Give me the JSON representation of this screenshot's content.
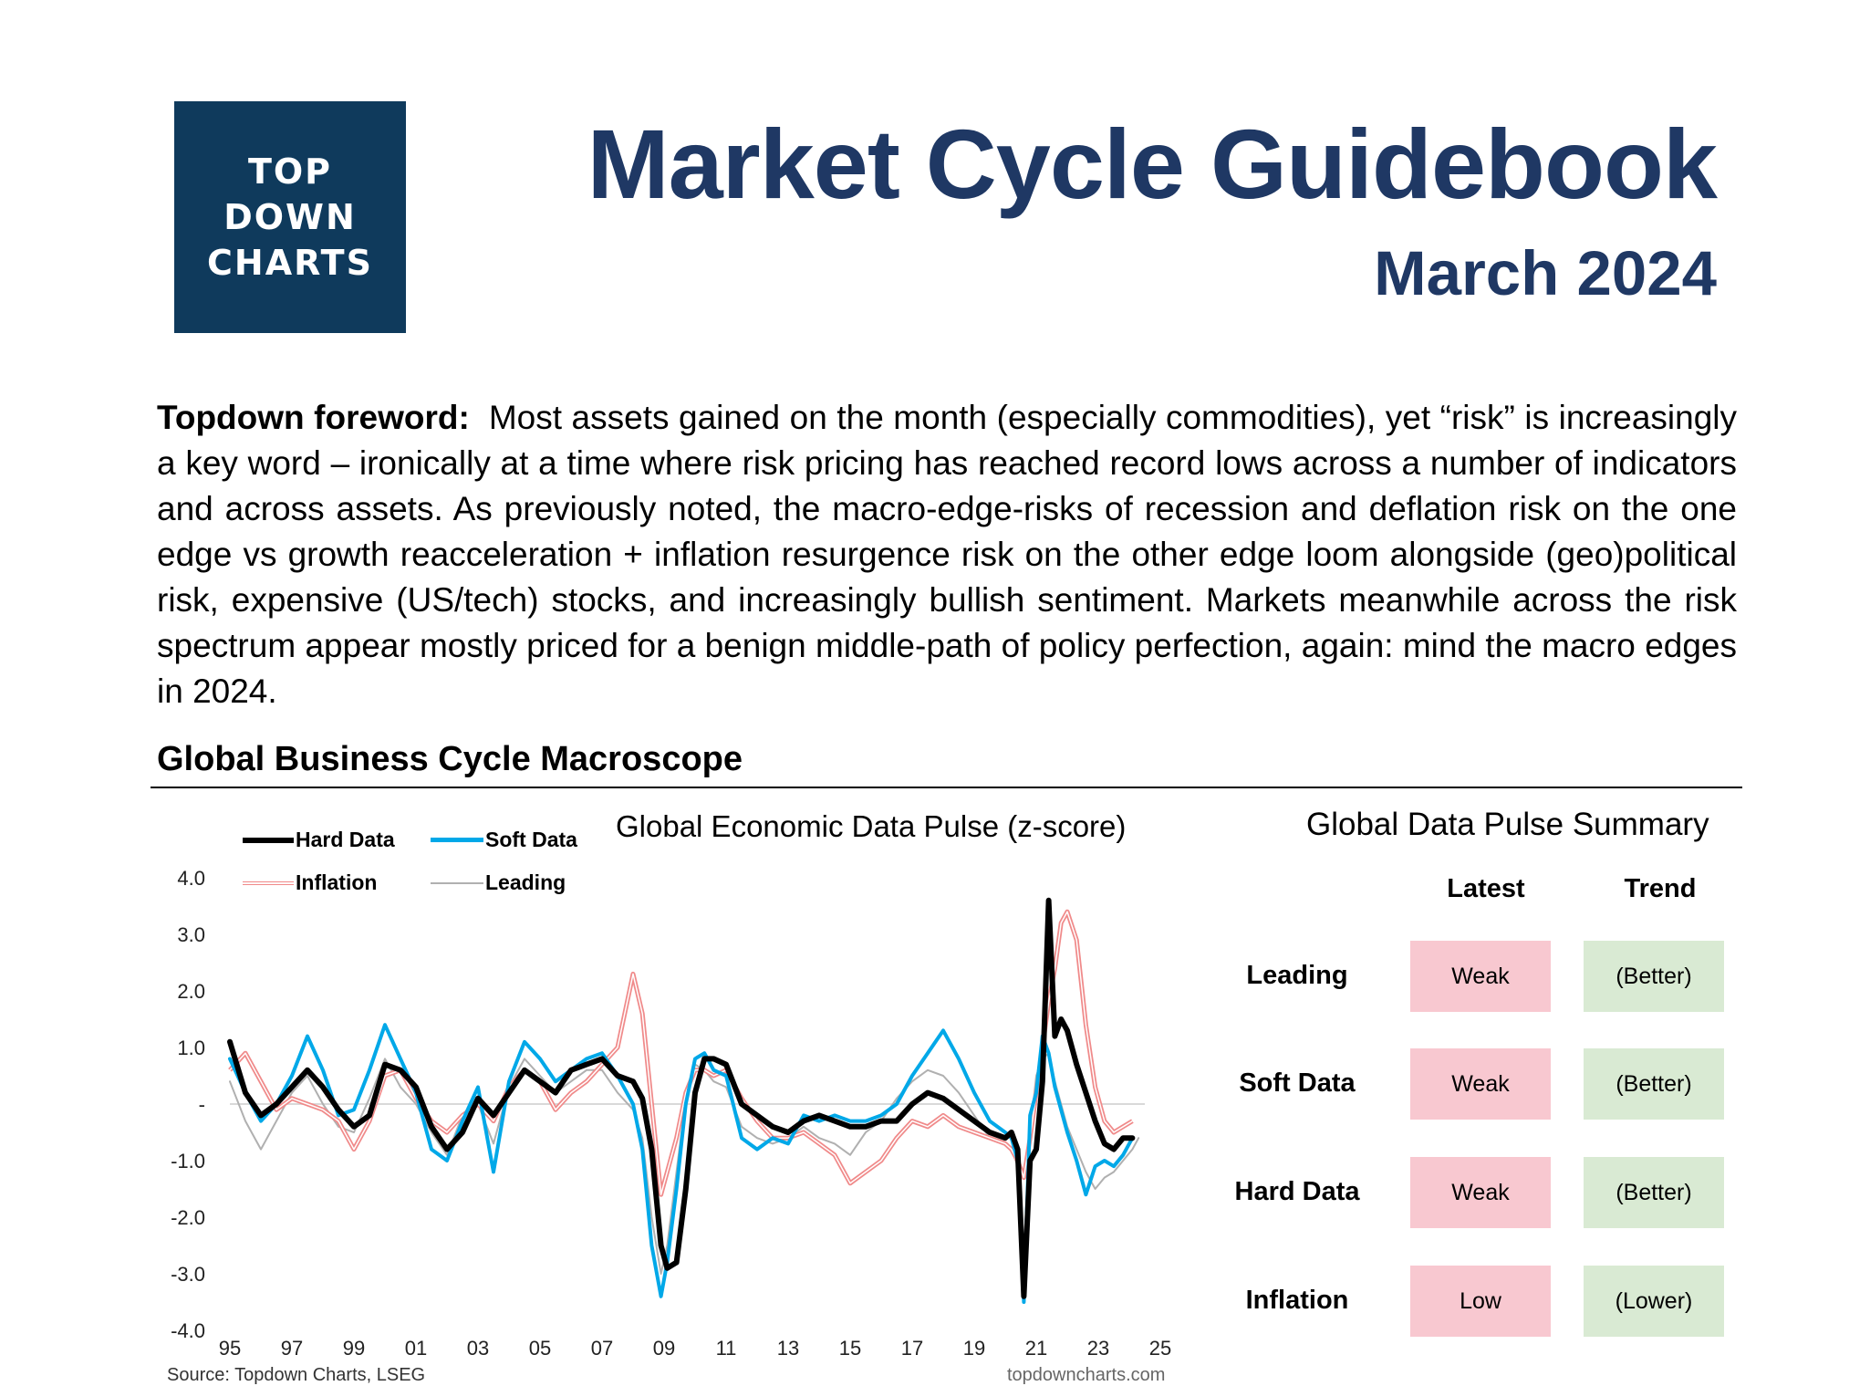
{
  "header": {
    "logo_lines": [
      "TOP",
      "DOWN",
      "CHARTS"
    ],
    "title": "Market Cycle Guidebook",
    "subtitle": "March 2024"
  },
  "foreword": {
    "label": "Topdown foreword:",
    "text": "Most assets gained on the month (especially commodities), yet “risk” is increasingly a key word – ironically at a time where risk pricing has reached record lows across a number of indicators and across assets.  As previously noted, the macro-edge-risks of recession and deflation risk on the one edge vs growth reacceleration + inflation resurgence risk on the other edge loom alongside (geo)political risk, expensive (US/tech) stocks, and increasingly bullish sentiment.  Markets meanwhile across the risk spectrum appear mostly priced for a benign middle-path of policy perfection, again: mind the macro edges in 2024."
  },
  "section": {
    "title": "Global Business Cycle Macroscope"
  },
  "chart_data": {
    "type": "line",
    "title": "Global Economic Data Pulse (z-score)",
    "ylim": [
      -4.0,
      4.0
    ],
    "yticks": [
      4.0,
      3.0,
      2.0,
      1.0,
      0,
      -1.0,
      -2.0,
      -3.0,
      -4.0
    ],
    "ytick_labels": [
      "4.0",
      "3.0",
      "2.0",
      "1.0",
      "-",
      "-1.0",
      "-2.0",
      "-3.0",
      "-4.0"
    ],
    "xlim": [
      1995,
      2025
    ],
    "xticks": [
      1995,
      1997,
      1999,
      2001,
      2003,
      2005,
      2007,
      2009,
      2011,
      2013,
      2015,
      2017,
      2019,
      2021,
      2023,
      2025
    ],
    "xtick_labels": [
      "95",
      "97",
      "99",
      "01",
      "03",
      "05",
      "07",
      "09",
      "11",
      "13",
      "15",
      "17",
      "19",
      "21",
      "23",
      "25"
    ],
    "legend": "top-left",
    "source": "Source: Topdown Charts, LSEG",
    "watermark": "topdowncharts.com",
    "series": [
      {
        "name": "Hard Data",
        "color": "#000000",
        "width": 6,
        "x": [
          1995.0,
          1995.5,
          1996.0,
          1996.5,
          1997.0,
          1997.5,
          1998.0,
          1998.5,
          1999.0,
          1999.5,
          2000.0,
          2000.5,
          2001.0,
          2001.5,
          2002.0,
          2002.5,
          2003.0,
          2003.5,
          2004.0,
          2004.5,
          2005.0,
          2005.5,
          2006.0,
          2006.5,
          2007.0,
          2007.5,
          2008.0,
          2008.3,
          2008.6,
          2008.9,
          2009.1,
          2009.4,
          2009.7,
          2010.0,
          2010.3,
          2010.6,
          2011.0,
          2011.5,
          2012.0,
          2012.5,
          2013.0,
          2013.5,
          2014.0,
          2014.5,
          2015.0,
          2015.5,
          2016.0,
          2016.5,
          2017.0,
          2017.5,
          2018.0,
          2018.5,
          2019.0,
          2019.5,
          2020.0,
          2020.2,
          2020.4,
          2020.6,
          2020.8,
          2021.0,
          2021.2,
          2021.4,
          2021.6,
          2021.8,
          2022.0,
          2022.3,
          2022.6,
          2022.9,
          2023.2,
          2023.5,
          2023.8,
          2024.1
        ],
        "values": [
          1.1,
          0.2,
          -0.2,
          0.0,
          0.3,
          0.6,
          0.3,
          -0.1,
          -0.4,
          -0.2,
          0.7,
          0.6,
          0.3,
          -0.4,
          -0.8,
          -0.5,
          0.1,
          -0.2,
          0.2,
          0.6,
          0.4,
          0.2,
          0.6,
          0.7,
          0.8,
          0.5,
          0.4,
          0.1,
          -0.8,
          -2.5,
          -2.9,
          -2.8,
          -1.5,
          0.2,
          0.8,
          0.8,
          0.7,
          0.0,
          -0.2,
          -0.4,
          -0.5,
          -0.3,
          -0.2,
          -0.3,
          -0.4,
          -0.4,
          -0.3,
          -0.3,
          0.0,
          0.2,
          0.1,
          -0.1,
          -0.3,
          -0.5,
          -0.6,
          -0.5,
          -0.8,
          -3.4,
          -1.0,
          -0.8,
          0.4,
          3.6,
          1.2,
          1.5,
          1.3,
          0.7,
          0.2,
          -0.3,
          -0.7,
          -0.8,
          -0.6,
          -0.6
        ]
      },
      {
        "name": "Soft Data",
        "color": "#00a8e8",
        "width": 4,
        "x": [
          1995.0,
          1995.5,
          1996.0,
          1996.5,
          1997.0,
          1997.5,
          1998.0,
          1998.5,
          1999.0,
          1999.5,
          2000.0,
          2000.5,
          2001.0,
          2001.5,
          2002.0,
          2002.5,
          2003.0,
          2003.5,
          2004.0,
          2004.5,
          2005.0,
          2005.5,
          2006.0,
          2006.5,
          2007.0,
          2007.5,
          2008.0,
          2008.3,
          2008.6,
          2008.9,
          2009.1,
          2009.4,
          2009.7,
          2010.0,
          2010.3,
          2010.6,
          2011.0,
          2011.5,
          2012.0,
          2012.5,
          2013.0,
          2013.5,
          2014.0,
          2014.5,
          2015.0,
          2015.5,
          2016.0,
          2016.5,
          2017.0,
          2017.5,
          2018.0,
          2018.5,
          2019.0,
          2019.5,
          2020.0,
          2020.2,
          2020.4,
          2020.6,
          2020.8,
          2021.0,
          2021.2,
          2021.4,
          2021.6,
          2021.8,
          2022.0,
          2022.3,
          2022.6,
          2022.9,
          2023.2,
          2023.5,
          2023.8,
          2024.1
        ],
        "values": [
          0.8,
          0.2,
          -0.3,
          0.0,
          0.5,
          1.2,
          0.6,
          -0.2,
          -0.1,
          0.6,
          1.4,
          0.8,
          0.2,
          -0.8,
          -1.0,
          -0.3,
          0.3,
          -1.2,
          0.4,
          1.1,
          0.8,
          0.4,
          0.6,
          0.8,
          0.9,
          0.5,
          0.0,
          -0.8,
          -2.5,
          -3.4,
          -2.8,
          -1.5,
          0.0,
          0.8,
          0.9,
          0.6,
          0.5,
          -0.6,
          -0.8,
          -0.6,
          -0.7,
          -0.2,
          -0.3,
          -0.2,
          -0.3,
          -0.3,
          -0.2,
          0.0,
          0.5,
          0.9,
          1.3,
          0.8,
          0.2,
          -0.3,
          -0.5,
          -0.6,
          -1.0,
          -3.5,
          -0.2,
          0.2,
          1.2,
          0.9,
          0.3,
          -0.1,
          -0.5,
          -1.0,
          -1.6,
          -1.1,
          -1.0,
          -1.1,
          -0.9,
          -0.6
        ]
      },
      {
        "name": "Inflation",
        "color": "#f08a8a",
        "width": 3,
        "x": [
          1995.0,
          1995.5,
          1996.0,
          1996.5,
          1997.0,
          1997.5,
          1998.0,
          1998.5,
          1999.0,
          1999.5,
          2000.0,
          2000.5,
          2001.0,
          2001.5,
          2002.0,
          2002.5,
          2003.0,
          2003.5,
          2004.0,
          2004.5,
          2005.0,
          2005.5,
          2006.0,
          2006.5,
          2007.0,
          2007.5,
          2008.0,
          2008.3,
          2008.6,
          2008.9,
          2009.1,
          2009.4,
          2009.7,
          2010.0,
          2010.3,
          2010.6,
          2011.0,
          2011.5,
          2012.0,
          2012.5,
          2013.0,
          2013.5,
          2014.0,
          2014.5,
          2015.0,
          2015.5,
          2016.0,
          2016.5,
          2017.0,
          2017.5,
          2018.0,
          2018.5,
          2019.0,
          2019.5,
          2020.0,
          2020.2,
          2020.4,
          2020.6,
          2020.8,
          2021.0,
          2021.2,
          2021.4,
          2021.6,
          2021.8,
          2022.0,
          2022.3,
          2022.6,
          2022.9,
          2023.2,
          2023.5,
          2023.8,
          2024.1
        ],
        "values": [
          0.6,
          0.9,
          0.4,
          -0.1,
          0.1,
          0.0,
          -0.1,
          -0.3,
          -0.8,
          -0.3,
          0.5,
          0.6,
          0.1,
          -0.3,
          -0.5,
          -0.2,
          0.0,
          -0.3,
          0.3,
          0.6,
          0.4,
          -0.1,
          0.2,
          0.4,
          0.7,
          1.0,
          2.3,
          1.6,
          0.0,
          -1.6,
          -1.2,
          -0.6,
          0.2,
          0.6,
          0.6,
          0.5,
          0.6,
          0.1,
          -0.3,
          -0.6,
          -0.6,
          -0.5,
          -0.7,
          -0.9,
          -1.4,
          -1.2,
          -1.0,
          -0.6,
          -0.3,
          -0.4,
          -0.2,
          -0.4,
          -0.5,
          -0.6,
          -0.7,
          -0.8,
          -1.0,
          -1.3,
          -0.6,
          0.2,
          1.0,
          1.8,
          2.4,
          3.2,
          3.4,
          2.9,
          1.4,
          0.3,
          -0.3,
          -0.5,
          -0.4,
          -0.3
        ]
      },
      {
        "name": "Leading",
        "color": "#b0b0b0",
        "width": 2,
        "x": [
          1995.0,
          1995.5,
          1996.0,
          1996.5,
          1997.0,
          1997.5,
          1998.0,
          1998.5,
          1999.0,
          1999.5,
          2000.0,
          2000.5,
          2001.0,
          2001.5,
          2002.0,
          2002.5,
          2003.0,
          2003.5,
          2004.0,
          2004.5,
          2005.0,
          2005.5,
          2006.0,
          2006.5,
          2007.0,
          2007.5,
          2008.0,
          2008.3,
          2008.6,
          2008.9,
          2009.1,
          2009.4,
          2009.7,
          2010.0,
          2010.3,
          2010.6,
          2011.0,
          2011.5,
          2012.0,
          2012.5,
          2013.0,
          2013.5,
          2014.0,
          2014.5,
          2015.0,
          2015.5,
          2016.0,
          2016.5,
          2017.0,
          2017.5,
          2018.0,
          2018.5,
          2019.0,
          2019.5,
          2020.0,
          2020.2,
          2020.4,
          2020.6,
          2020.8,
          2021.0,
          2021.2,
          2021.4,
          2021.6,
          2021.8,
          2022.0,
          2022.3,
          2022.6,
          2022.9,
          2023.2,
          2023.5,
          2023.8,
          2024.1,
          2024.3
        ],
        "values": [
          0.4,
          -0.3,
          -0.8,
          -0.3,
          0.2,
          0.5,
          0.0,
          -0.4,
          -0.5,
          0.1,
          0.8,
          0.3,
          0.0,
          -0.5,
          -0.9,
          -0.2,
          0.0,
          -0.7,
          0.3,
          0.8,
          0.5,
          0.2,
          0.4,
          0.6,
          0.6,
          0.2,
          -0.1,
          -0.6,
          -2.0,
          -3.0,
          -2.5,
          -1.2,
          0.1,
          0.7,
          0.6,
          0.4,
          0.3,
          -0.4,
          -0.6,
          -0.7,
          -0.6,
          -0.4,
          -0.6,
          -0.7,
          -0.9,
          -0.5,
          -0.3,
          0.1,
          0.4,
          0.6,
          0.5,
          0.2,
          -0.2,
          -0.6,
          -0.7,
          -0.8,
          -1.1,
          -2.6,
          -0.5,
          0.5,
          0.8,
          0.9,
          0.4,
          0.0,
          -0.4,
          -0.8,
          -1.2,
          -1.5,
          -1.3,
          -1.2,
          -1.0,
          -0.8,
          -0.6
        ]
      }
    ]
  },
  "summary": {
    "title": "Global Data Pulse Summary",
    "columns": [
      "Latest",
      "Trend"
    ],
    "rows": [
      {
        "label": "Leading",
        "latest": "Weak",
        "trend": "(Better)"
      },
      {
        "label": "Soft Data",
        "latest": "Weak",
        "trend": "(Better)"
      },
      {
        "label": "Hard Data",
        "latest": "Weak",
        "trend": "(Better)"
      },
      {
        "label": "Inflation",
        "latest": "Low",
        "trend": "(Lower)"
      }
    ],
    "colors": {
      "latest_bg": "#f8c8d0",
      "trend_bg": "#d9ead3"
    }
  }
}
